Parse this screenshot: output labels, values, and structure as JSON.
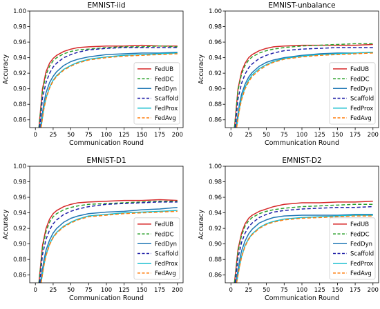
{
  "chart_data": [
    {
      "type": "line",
      "title": "EMNIST-iid",
      "xlabel": "Communication Round",
      "ylabel": "Accuracy",
      "xlim": [
        -8,
        208
      ],
      "ylim": [
        0.85,
        1.0
      ],
      "xticks": [
        0,
        25,
        50,
        75,
        100,
        125,
        150,
        175,
        200
      ],
      "yticks": [
        0.86,
        0.88,
        0.9,
        0.92,
        0.94,
        0.96,
        0.98,
        1.0
      ],
      "legend_position": "bottom-right",
      "grid": false,
      "series": [
        {
          "name": "FedUB",
          "color": "#d62728",
          "dash": "solid",
          "x": [
            5,
            10,
            15,
            20,
            25,
            30,
            40,
            50,
            60,
            75,
            100,
            125,
            150,
            175,
            200
          ],
          "y": [
            0.85,
            0.9,
            0.922,
            0.933,
            0.939,
            0.943,
            0.948,
            0.951,
            0.953,
            0.954,
            0.955,
            0.955,
            0.956,
            0.955,
            0.955
          ]
        },
        {
          "name": "FedDC",
          "color": "#2ca02c",
          "dash": "dashed",
          "x": [
            5,
            10,
            15,
            20,
            25,
            30,
            40,
            50,
            60,
            75,
            100,
            125,
            150,
            175,
            200
          ],
          "y": [
            0.85,
            0.897,
            0.918,
            0.929,
            0.936,
            0.94,
            0.945,
            0.948,
            0.95,
            0.951,
            0.953,
            0.954,
            0.954,
            0.955,
            0.954
          ]
        },
        {
          "name": "FedDyn",
          "color": "#1f77b4",
          "dash": "solid",
          "x": [
            7,
            12,
            15,
            20,
            25,
            30,
            40,
            50,
            60,
            75,
            100,
            125,
            150,
            175,
            200
          ],
          "y": [
            0.85,
            0.882,
            0.895,
            0.908,
            0.916,
            0.922,
            0.93,
            0.935,
            0.938,
            0.941,
            0.944,
            0.945,
            0.946,
            0.946,
            0.947
          ]
        },
        {
          "name": "Scaffold",
          "color": "#1f1fa8",
          "dash": "dashed",
          "x": [
            6,
            10,
            15,
            20,
            25,
            30,
            40,
            50,
            60,
            75,
            100,
            125,
            150,
            175,
            200
          ],
          "y": [
            0.85,
            0.888,
            0.908,
            0.92,
            0.928,
            0.933,
            0.94,
            0.944,
            0.947,
            0.95,
            0.952,
            0.953,
            0.953,
            0.953,
            0.953
          ]
        },
        {
          "name": "FedProx",
          "color": "#17becf",
          "dash": "solid",
          "x": [
            8,
            12,
            15,
            20,
            25,
            30,
            40,
            50,
            60,
            75,
            100,
            125,
            150,
            175,
            200
          ],
          "y": [
            0.85,
            0.876,
            0.888,
            0.902,
            0.911,
            0.917,
            0.925,
            0.93,
            0.934,
            0.938,
            0.941,
            0.943,
            0.944,
            0.945,
            0.946
          ]
        },
        {
          "name": "FedAvg",
          "color": "#ff7f0e",
          "dash": "dashed",
          "x": [
            8,
            12,
            15,
            20,
            25,
            30,
            40,
            50,
            60,
            75,
            100,
            125,
            150,
            175,
            200
          ],
          "y": [
            0.85,
            0.874,
            0.887,
            0.901,
            0.91,
            0.916,
            0.924,
            0.929,
            0.933,
            0.937,
            0.94,
            0.942,
            0.943,
            0.944,
            0.945
          ]
        }
      ]
    },
    {
      "type": "line",
      "title": "EMNIST-unbalance",
      "xlabel": "Communication Round",
      "ylabel": "Accuracy",
      "xlim": [
        -8,
        208
      ],
      "ylim": [
        0.85,
        1.0
      ],
      "xticks": [
        0,
        25,
        50,
        75,
        100,
        125,
        150,
        175,
        200
      ],
      "yticks": [
        0.86,
        0.88,
        0.9,
        0.92,
        0.94,
        0.96,
        0.98,
        1.0
      ],
      "legend_position": "bottom-right",
      "grid": false,
      "series": [
        {
          "name": "FedUB",
          "color": "#d62728",
          "dash": "solid",
          "x": [
            5,
            10,
            15,
            20,
            25,
            30,
            40,
            50,
            60,
            75,
            100,
            125,
            150,
            175,
            200
          ],
          "y": [
            0.85,
            0.9,
            0.922,
            0.933,
            0.94,
            0.944,
            0.949,
            0.952,
            0.954,
            0.955,
            0.956,
            0.956,
            0.956,
            0.956,
            0.957
          ]
        },
        {
          "name": "FedDC",
          "color": "#2ca02c",
          "dash": "dashed",
          "x": [
            5,
            10,
            15,
            20,
            25,
            30,
            40,
            50,
            60,
            75,
            100,
            125,
            150,
            175,
            200
          ],
          "y": [
            0.85,
            0.898,
            0.919,
            0.93,
            0.937,
            0.941,
            0.946,
            0.949,
            0.951,
            0.953,
            0.955,
            0.956,
            0.957,
            0.958,
            0.958
          ]
        },
        {
          "name": "FedDyn",
          "color": "#1f77b4",
          "dash": "solid",
          "x": [
            7,
            12,
            15,
            20,
            25,
            30,
            40,
            50,
            60,
            75,
            100,
            125,
            150,
            175,
            200
          ],
          "y": [
            0.85,
            0.88,
            0.893,
            0.906,
            0.915,
            0.921,
            0.929,
            0.934,
            0.937,
            0.94,
            0.943,
            0.945,
            0.946,
            0.946,
            0.947
          ]
        },
        {
          "name": "Scaffold",
          "color": "#1f1fa8",
          "dash": "dashed",
          "x": [
            6,
            10,
            15,
            20,
            25,
            30,
            40,
            50,
            60,
            75,
            100,
            125,
            150,
            175,
            200
          ],
          "y": [
            0.85,
            0.887,
            0.907,
            0.919,
            0.927,
            0.932,
            0.939,
            0.943,
            0.946,
            0.949,
            0.951,
            0.952,
            0.953,
            0.953,
            0.953
          ]
        },
        {
          "name": "FedProx",
          "color": "#17becf",
          "dash": "solid",
          "x": [
            8,
            12,
            15,
            20,
            25,
            30,
            40,
            50,
            60,
            75,
            100,
            125,
            150,
            175,
            200
          ],
          "y": [
            0.85,
            0.875,
            0.888,
            0.902,
            0.911,
            0.918,
            0.926,
            0.931,
            0.935,
            0.939,
            0.942,
            0.944,
            0.945,
            0.946,
            0.947
          ]
        },
        {
          "name": "FedAvg",
          "color": "#ff7f0e",
          "dash": "dashed",
          "x": [
            8,
            12,
            15,
            20,
            25,
            30,
            40,
            50,
            60,
            75,
            100,
            125,
            150,
            175,
            200
          ],
          "y": [
            0.85,
            0.873,
            0.886,
            0.9,
            0.909,
            0.916,
            0.924,
            0.93,
            0.934,
            0.938,
            0.941,
            0.943,
            0.944,
            0.945,
            0.946
          ]
        }
      ]
    },
    {
      "type": "line",
      "title": "EMNIST-D1",
      "xlabel": "Communication Round",
      "ylabel": "Accuracy",
      "xlim": [
        -8,
        208
      ],
      "ylim": [
        0.85,
        1.0
      ],
      "xticks": [
        0,
        25,
        50,
        75,
        100,
        125,
        150,
        175,
        200
      ],
      "yticks": [
        0.86,
        0.88,
        0.9,
        0.92,
        0.94,
        0.96,
        0.98,
        1.0
      ],
      "legend_position": "bottom-right",
      "grid": false,
      "series": [
        {
          "name": "FedUB",
          "color": "#d62728",
          "dash": "solid",
          "x": [
            5,
            10,
            15,
            20,
            25,
            30,
            40,
            50,
            60,
            75,
            100,
            125,
            150,
            175,
            200
          ],
          "y": [
            0.85,
            0.898,
            0.92,
            0.932,
            0.939,
            0.943,
            0.948,
            0.951,
            0.953,
            0.954,
            0.955,
            0.956,
            0.956,
            0.957,
            0.956
          ]
        },
        {
          "name": "FedDC",
          "color": "#2ca02c",
          "dash": "dashed",
          "x": [
            5,
            10,
            15,
            20,
            25,
            30,
            40,
            50,
            60,
            75,
            100,
            125,
            150,
            175,
            200
          ],
          "y": [
            0.85,
            0.895,
            0.916,
            0.928,
            0.935,
            0.939,
            0.944,
            0.947,
            0.949,
            0.951,
            0.952,
            0.953,
            0.954,
            0.955,
            0.955
          ]
        },
        {
          "name": "FedDyn",
          "color": "#1f77b4",
          "dash": "solid",
          "x": [
            7,
            12,
            15,
            20,
            25,
            30,
            40,
            50,
            60,
            75,
            100,
            125,
            150,
            175,
            200
          ],
          "y": [
            0.85,
            0.879,
            0.892,
            0.905,
            0.914,
            0.92,
            0.928,
            0.933,
            0.936,
            0.939,
            0.941,
            0.942,
            0.944,
            0.945,
            0.947
          ]
        },
        {
          "name": "Scaffold",
          "color": "#1f1fa8",
          "dash": "dashed",
          "x": [
            6,
            10,
            15,
            20,
            25,
            30,
            40,
            50,
            60,
            75,
            100,
            125,
            150,
            175,
            200
          ],
          "y": [
            0.85,
            0.886,
            0.906,
            0.918,
            0.926,
            0.931,
            0.938,
            0.942,
            0.945,
            0.948,
            0.951,
            0.952,
            0.953,
            0.954,
            0.954
          ]
        },
        {
          "name": "FedProx",
          "color": "#17becf",
          "dash": "solid",
          "x": [
            8,
            12,
            15,
            20,
            25,
            30,
            40,
            50,
            60,
            75,
            100,
            125,
            150,
            175,
            200
          ],
          "y": [
            0.85,
            0.873,
            0.886,
            0.9,
            0.909,
            0.915,
            0.923,
            0.928,
            0.932,
            0.936,
            0.938,
            0.94,
            0.941,
            0.942,
            0.943
          ]
        },
        {
          "name": "FedAvg",
          "color": "#ff7f0e",
          "dash": "dashed",
          "x": [
            8,
            12,
            15,
            20,
            25,
            30,
            40,
            50,
            60,
            75,
            100,
            125,
            150,
            175,
            200
          ],
          "y": [
            0.85,
            0.872,
            0.885,
            0.899,
            0.908,
            0.914,
            0.922,
            0.927,
            0.931,
            0.935,
            0.937,
            0.939,
            0.94,
            0.941,
            0.942
          ]
        }
      ]
    },
    {
      "type": "line",
      "title": "EMNIST-D2",
      "xlabel": "Communication Round",
      "ylabel": "Accuracy",
      "xlim": [
        -8,
        208
      ],
      "ylim": [
        0.85,
        1.0
      ],
      "xticks": [
        0,
        25,
        50,
        75,
        100,
        125,
        150,
        175,
        200
      ],
      "yticks": [
        0.86,
        0.88,
        0.9,
        0.92,
        0.94,
        0.96,
        0.98,
        1.0
      ],
      "legend_position": "bottom-right",
      "grid": false,
      "series": [
        {
          "name": "FedUB",
          "color": "#d62728",
          "dash": "solid",
          "x": [
            5,
            10,
            15,
            20,
            25,
            30,
            40,
            50,
            60,
            75,
            100,
            125,
            150,
            175,
            200
          ],
          "y": [
            0.85,
            0.893,
            0.914,
            0.926,
            0.933,
            0.937,
            0.942,
            0.945,
            0.948,
            0.951,
            0.953,
            0.953,
            0.954,
            0.954,
            0.955
          ]
        },
        {
          "name": "FedDC",
          "color": "#2ca02c",
          "dash": "dashed",
          "x": [
            5,
            10,
            15,
            20,
            25,
            30,
            40,
            50,
            60,
            75,
            100,
            125,
            150,
            175,
            200
          ],
          "y": [
            0.85,
            0.89,
            0.911,
            0.923,
            0.93,
            0.934,
            0.939,
            0.942,
            0.944,
            0.946,
            0.948,
            0.949,
            0.95,
            0.951,
            0.951
          ]
        },
        {
          "name": "FedDyn",
          "color": "#1f77b4",
          "dash": "solid",
          "x": [
            7,
            12,
            15,
            20,
            25,
            30,
            40,
            50,
            60,
            75,
            100,
            125,
            150,
            175,
            200
          ],
          "y": [
            0.85,
            0.878,
            0.891,
            0.904,
            0.913,
            0.919,
            0.927,
            0.931,
            0.934,
            0.936,
            0.937,
            0.937,
            0.937,
            0.938,
            0.938
          ]
        },
        {
          "name": "Scaffold",
          "color": "#1f1fa8",
          "dash": "dashed",
          "x": [
            6,
            10,
            15,
            20,
            25,
            30,
            40,
            50,
            60,
            75,
            100,
            125,
            150,
            175,
            200
          ],
          "y": [
            0.85,
            0.882,
            0.902,
            0.914,
            0.922,
            0.927,
            0.934,
            0.938,
            0.941,
            0.943,
            0.945,
            0.946,
            0.947,
            0.947,
            0.948
          ]
        },
        {
          "name": "FedProx",
          "color": "#17becf",
          "dash": "solid",
          "x": [
            8,
            12,
            15,
            20,
            25,
            30,
            40,
            50,
            60,
            75,
            100,
            125,
            150,
            175,
            200
          ],
          "y": [
            0.85,
            0.871,
            0.884,
            0.898,
            0.907,
            0.913,
            0.921,
            0.926,
            0.929,
            0.932,
            0.934,
            0.935,
            0.936,
            0.937,
            0.937
          ]
        },
        {
          "name": "FedAvg",
          "color": "#ff7f0e",
          "dash": "dashed",
          "x": [
            8,
            12,
            15,
            20,
            25,
            30,
            40,
            50,
            60,
            75,
            100,
            125,
            150,
            175,
            200
          ],
          "y": [
            0.85,
            0.87,
            0.883,
            0.897,
            0.906,
            0.912,
            0.92,
            0.925,
            0.928,
            0.931,
            0.933,
            0.934,
            0.935,
            0.936,
            0.936
          ]
        }
      ]
    }
  ]
}
